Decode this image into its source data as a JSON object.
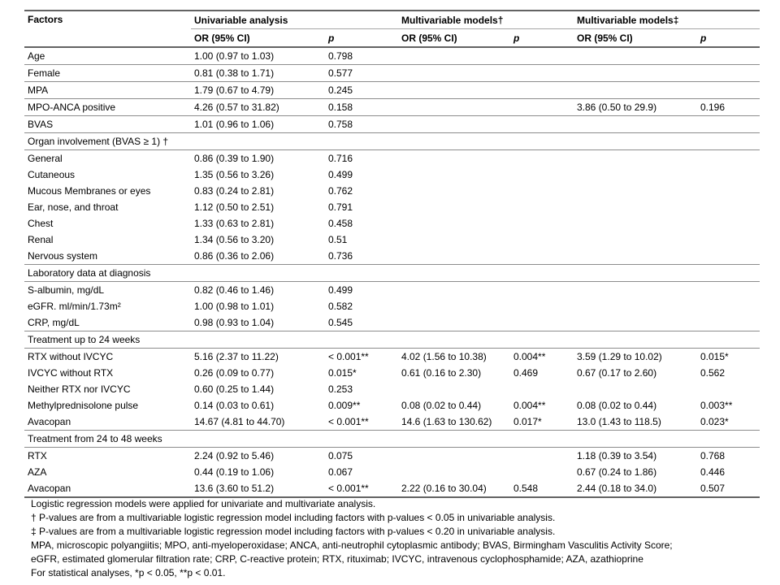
{
  "table": {
    "header": {
      "factors": "Factors",
      "group1": "Univariable analysis",
      "group2": "Multivariable models†",
      "group3": "Multivariable models‡",
      "or_label": "OR (95% CI)",
      "p_label": "p"
    },
    "rows": [
      {
        "type": "data",
        "border": true,
        "factor": "Age",
        "cells": [
          "1.00 (0.97 to 1.03)",
          "0.798",
          "",
          "",
          "",
          ""
        ]
      },
      {
        "type": "data",
        "border": true,
        "factor": "Female",
        "cells": [
          "0.81 (0.38 to 1.71)",
          "0.577",
          "",
          "",
          "",
          ""
        ]
      },
      {
        "type": "data",
        "border": true,
        "factor": "MPA",
        "cells": [
          "1.79 (0.67 to 4.79)",
          "0.245",
          "",
          "",
          "",
          ""
        ]
      },
      {
        "type": "data",
        "border": true,
        "factor": "MPO-ANCA positive",
        "cells": [
          "4.26 (0.57 to 31.82)",
          "0.158",
          "",
          "",
          "3.86 (0.50 to 29.9)",
          "0.196"
        ]
      },
      {
        "type": "data",
        "border": true,
        "factor": "BVAS",
        "cells": [
          "1.01 (0.96 to 1.06)",
          "0.758",
          "",
          "",
          "",
          ""
        ]
      },
      {
        "type": "section",
        "border": true,
        "label": "Organ involvement (BVAS ≥ 1) †"
      },
      {
        "type": "data",
        "border": false,
        "factor": "General",
        "cells": [
          "0.86 (0.39 to 1.90)",
          "0.716",
          "",
          "",
          "",
          ""
        ]
      },
      {
        "type": "data",
        "border": false,
        "factor": "Cutaneous",
        "cells": [
          "1.35 (0.56 to 3.26)",
          "0.499",
          "",
          "",
          "",
          ""
        ]
      },
      {
        "type": "data",
        "border": false,
        "factor": "Mucous Membranes or eyes",
        "cells": [
          "0.83 (0.24 to 2.81)",
          "0.762",
          "",
          "",
          "",
          ""
        ]
      },
      {
        "type": "data",
        "border": false,
        "factor": "Ear, nose, and throat",
        "cells": [
          "1.12 (0.50 to 2.51)",
          "0.791",
          "",
          "",
          "",
          ""
        ]
      },
      {
        "type": "data",
        "border": false,
        "factor": "Chest",
        "cells": [
          "1.33 (0.63 to 2.81)",
          "0.458",
          "",
          "",
          "",
          ""
        ]
      },
      {
        "type": "data",
        "border": false,
        "factor": "Renal",
        "cells": [
          "1.34 (0.56 to 3.20)",
          "0.51",
          "",
          "",
          "",
          ""
        ]
      },
      {
        "type": "data",
        "border": true,
        "factor": "Nervous system",
        "cells": [
          "0.86 (0.36 to 2.06)",
          "0.736",
          "",
          "",
          "",
          ""
        ]
      },
      {
        "type": "section",
        "border": true,
        "label": "Laboratory data at diagnosis"
      },
      {
        "type": "data",
        "border": false,
        "factor": "S-albumin, mg/dL",
        "cells": [
          "0.82 (0.46 to 1.46)",
          "0.499",
          "",
          "",
          "",
          ""
        ]
      },
      {
        "type": "data",
        "border": false,
        "factor": "eGFR. ml/min/1.73m²",
        "cells": [
          "1.00 (0.98 to 1.01)",
          "0.582",
          "",
          "",
          "",
          ""
        ]
      },
      {
        "type": "data",
        "border": true,
        "factor": "CRP, mg/dL",
        "cells": [
          "0.98 (0.93 to 1.04)",
          "0.545",
          "",
          "",
          "",
          ""
        ]
      },
      {
        "type": "section",
        "border": true,
        "label": "Treatment up to 24 weeks"
      },
      {
        "type": "data",
        "border": false,
        "factor": "RTX without IVCYC",
        "cells": [
          "5.16 (2.37 to 11.22)",
          "< 0.001**",
          "4.02 (1.56 to 10.38)",
          "0.004**",
          "3.59 (1.29 to 10.02)",
          "0.015*"
        ]
      },
      {
        "type": "data",
        "border": false,
        "factor": "IVCYC without RTX",
        "cells": [
          "0.26 (0.09 to 0.77)",
          "0.015*",
          "0.61 (0.16 to 2.30)",
          "0.469",
          "0.67 (0.17 to 2.60)",
          "0.562"
        ]
      },
      {
        "type": "data",
        "border": false,
        "factor": "Neither RTX nor IVCYC",
        "cells": [
          "0.60 (0.25 to 1.44)",
          "0.253",
          "",
          "",
          "",
          ""
        ]
      },
      {
        "type": "data",
        "border": false,
        "factor": "Methylprednisolone pulse",
        "cells": [
          "0.14 (0.03 to 0.61)",
          "0.009**",
          "0.08 (0.02 to 0.44)",
          "0.004**",
          "0.08 (0.02 to 0.44)",
          "0.003**"
        ]
      },
      {
        "type": "data",
        "border": true,
        "factor": "Avacopan",
        "cells": [
          "14.67 (4.81 to 44.70)",
          "< 0.001**",
          "14.6 (1.63 to 130.62)",
          "0.017*",
          "13.0 (1.43 to 118.5)",
          "0.023*"
        ]
      },
      {
        "type": "section",
        "border": true,
        "label": "Treatment from 24 to 48 weeks"
      },
      {
        "type": "data",
        "border": false,
        "factor": "RTX",
        "cells": [
          "2.24 (0.92 to 5.46)",
          "0.075",
          "",
          "",
          "1.18 (0.39 to 3.54)",
          "0.768"
        ]
      },
      {
        "type": "data",
        "border": false,
        "factor": "AZA",
        "cells": [
          "0.44 (0.19 to 1.06)",
          "0.067",
          "",
          "",
          "0.67 (0.24 to 1.86)",
          "0.446"
        ]
      },
      {
        "type": "data",
        "border": false,
        "thick": true,
        "factor": "Avacopan",
        "cells": [
          "13.6 (3.60 to 51.2)",
          "< 0.001**",
          "2.22 (0.16 to 30.04)",
          "0.548",
          "2.44 (0.18 to 34.0)",
          "0.507"
        ]
      }
    ]
  },
  "footnotes": [
    "Logistic regression models were applied for univariate and multivariate analysis.",
    "† P-values are from a multivariable logistic regression model including factors with p-values < 0.05 in univariable analysis.",
    "‡ P-values are from a multivariable logistic regression model including factors with p-values < 0.20 in univariable analysis.",
    "MPA, microscopic polyangiitis; MPO, anti-myeloperoxidase; ANCA, anti-neutrophil cytoplasmic antibody; BVAS, Birmingham Vasculitis Activity Score;",
    "eGFR, estimated glomerular filtration rate; CRP, C-reactive protein; RTX, rituximab; IVCYC, intravenous cyclophosphamide; AZA, azathioprine",
    "For statistical analyses, *p < 0.05, **p < 0.01."
  ]
}
